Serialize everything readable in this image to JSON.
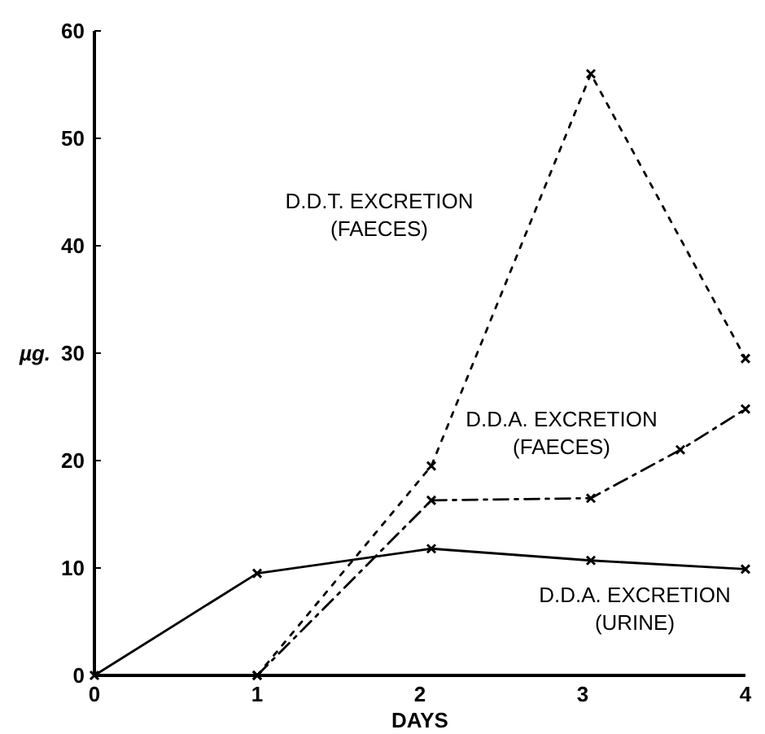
{
  "chart_data": {
    "type": "line",
    "xlabel": "DAYS",
    "ylabel": "µg.",
    "xlim": [
      0,
      4
    ],
    "xticks": [
      0,
      1,
      2,
      3,
      4
    ],
    "ylim": [
      0,
      60
    ],
    "yticks": [
      0,
      10,
      20,
      30,
      40,
      50,
      60
    ],
    "grid": false,
    "marker": "cross",
    "series": [
      {
        "name": "D.D.T. EXCRETION (FAECES)",
        "color": "#000000",
        "line_style": "dotted",
        "x": [
          1,
          2.07,
          3.05,
          4
        ],
        "values": [
          0,
          19.5,
          56,
          29.5
        ]
      },
      {
        "name": "D.D.A. EXCRETION (FAECES)",
        "color": "#000000",
        "line_style": "dashed",
        "x": [
          1,
          2.07,
          3.05,
          3.6,
          4
        ],
        "values": [
          0,
          16.3,
          16.5,
          21,
          24.8
        ]
      },
      {
        "name": "D.D.A. EXCRETION (URINE)",
        "color": "#000000",
        "line_style": "solid",
        "x": [
          0,
          1,
          2.07,
          3.05,
          4
        ],
        "values": [
          0,
          9.5,
          11.8,
          10.7,
          9.9
        ]
      }
    ]
  }
}
